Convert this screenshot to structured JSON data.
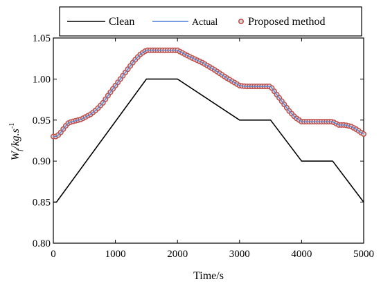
{
  "chart_data": {
    "type": "line",
    "xlabel": "Time/s",
    "ylabel_main": "W",
    "ylabel_sub": "f",
    "ylabel_rest": "/kg.s",
    "ylabel_sup": "-1",
    "xlim": [
      0,
      5000
    ],
    "ylim": [
      0.8,
      1.05
    ],
    "xticks": [
      0,
      1000,
      2000,
      3000,
      4000,
      5000
    ],
    "yticks": [
      0.8,
      0.85,
      0.9,
      0.95,
      1.0,
      1.05
    ],
    "xtick_labels": [
      "0",
      "1000",
      "2000",
      "3000",
      "4000",
      "5000"
    ],
    "ytick_labels": [
      "0.80",
      "0.85",
      "0.90",
      "0.95",
      "1.00",
      "1.05"
    ],
    "grid": false,
    "legend_position": "top",
    "series": [
      {
        "name": "Clean",
        "style": "line",
        "color": "#000000",
        "x": [
          0,
          50,
          1500,
          2000,
          3000,
          3500,
          4000,
          4500,
          5000
        ],
        "y": [
          0.85,
          0.85,
          1.0,
          1.0,
          0.95,
          0.95,
          0.9,
          0.9,
          0.85
        ]
      },
      {
        "name": "Actual",
        "style": "line",
        "color": "#4f7fd9",
        "x": [
          0,
          50,
          100,
          150,
          200,
          250,
          300,
          350,
          400,
          450,
          500,
          550,
          600,
          700,
          800,
          900,
          1000,
          1100,
          1200,
          1300,
          1400,
          1500,
          1600,
          1700,
          1800,
          1900,
          2000,
          2100,
          2200,
          2400,
          2600,
          2800,
          3000,
          3100,
          3200,
          3300,
          3400,
          3500,
          3600,
          3700,
          3800,
          3900,
          4000,
          4100,
          4200,
          4300,
          4400,
          4500,
          4550,
          4600,
          4650,
          4700,
          4750,
          4800,
          4850,
          4900,
          4950,
          5000
        ],
        "y": [
          0.93,
          0.93,
          0.933,
          0.938,
          0.943,
          0.947,
          0.948,
          0.949,
          0.95,
          0.951,
          0.953,
          0.955,
          0.957,
          0.963,
          0.971,
          0.982,
          0.992,
          1.002,
          1.012,
          1.022,
          1.03,
          1.035,
          1.035,
          1.035,
          1.035,
          1.035,
          1.035,
          1.031,
          1.027,
          1.02,
          1.011,
          1.001,
          0.992,
          0.991,
          0.991,
          0.991,
          0.991,
          0.991,
          0.981,
          0.971,
          0.961,
          0.953,
          0.948,
          0.948,
          0.948,
          0.948,
          0.948,
          0.948,
          0.946,
          0.944,
          0.944,
          0.944,
          0.943,
          0.942,
          0.94,
          0.938,
          0.935,
          0.933
        ]
      },
      {
        "name": "Proposed method",
        "style": "markers",
        "color": "#c0504d",
        "marker_fill": "#d9d9d9",
        "x": [
          0,
          50,
          100,
          150,
          200,
          250,
          300,
          350,
          400,
          450,
          500,
          550,
          600,
          700,
          800,
          900,
          1000,
          1100,
          1200,
          1300,
          1400,
          1500,
          1600,
          1700,
          1800,
          1900,
          2000,
          2100,
          2200,
          2400,
          2600,
          2800,
          3000,
          3100,
          3200,
          3300,
          3400,
          3500,
          3600,
          3700,
          3800,
          3900,
          4000,
          4100,
          4200,
          4300,
          4400,
          4500,
          4550,
          4600,
          4650,
          4700,
          4750,
          4800,
          4850,
          4900,
          4950,
          5000
        ],
        "y": [
          0.93,
          0.93,
          0.933,
          0.938,
          0.943,
          0.947,
          0.948,
          0.949,
          0.95,
          0.951,
          0.953,
          0.955,
          0.957,
          0.963,
          0.971,
          0.982,
          0.992,
          1.002,
          1.012,
          1.022,
          1.03,
          1.035,
          1.035,
          1.035,
          1.035,
          1.035,
          1.035,
          1.031,
          1.027,
          1.02,
          1.011,
          1.001,
          0.992,
          0.991,
          0.991,
          0.991,
          0.991,
          0.991,
          0.981,
          0.971,
          0.961,
          0.953,
          0.948,
          0.948,
          0.948,
          0.948,
          0.948,
          0.948,
          0.946,
          0.944,
          0.944,
          0.944,
          0.943,
          0.942,
          0.94,
          0.938,
          0.935,
          0.933
        ]
      }
    ]
  }
}
